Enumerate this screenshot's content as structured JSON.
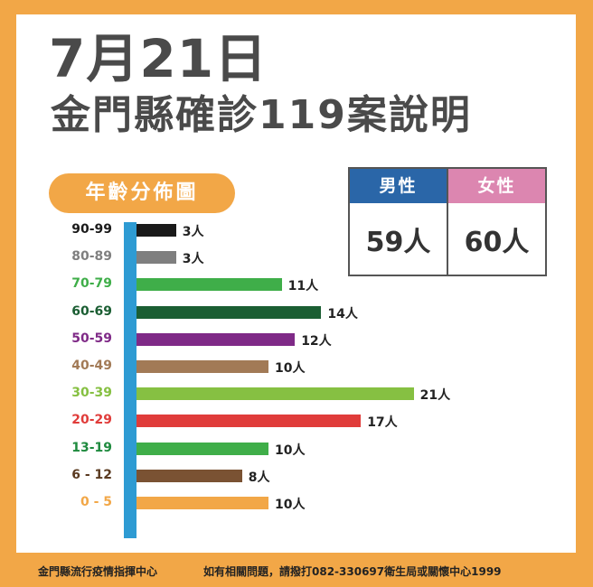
{
  "header": {
    "date": "7月21日",
    "title": "金門縣確診119案說明"
  },
  "section_label": "年齡分佈圖",
  "gender": {
    "male": {
      "label": "男性",
      "value": "59人",
      "color": "#2a66a8"
    },
    "female": {
      "label": "女性",
      "value": "60人",
      "color": "#dc86b0"
    }
  },
  "chart_data": {
    "type": "bar",
    "orientation": "horizontal",
    "title": "年齡分佈圖",
    "xlabel": "",
    "ylabel": "年齡",
    "unit": "人",
    "categories": [
      "90-99",
      "80-89",
      "70-79",
      "60-69",
      "50-59",
      "40-49",
      "30-39",
      "20-29",
      "13-19",
      "6 - 12",
      "0 - 5"
    ],
    "values": [
      3,
      3,
      11,
      14,
      12,
      10,
      21,
      17,
      10,
      8,
      10
    ],
    "value_labels": [
      "3人",
      "3人",
      "11人",
      "14人",
      "12人",
      "10人",
      "21人",
      "17人",
      "10人",
      "8人",
      "10人"
    ],
    "bar_colors": [
      "#1a1a1a",
      "#7f7f7f",
      "#3fae49",
      "#1b5e33",
      "#7f2a87",
      "#a27a56",
      "#86c042",
      "#e03c3a",
      "#3fae49",
      "#7a5233",
      "#f2a747"
    ],
    "label_colors": [
      "#1a1a1a",
      "#7f7f7f",
      "#3fae49",
      "#1b5e33",
      "#7f2a87",
      "#a27a56",
      "#86c042",
      "#e03c3a",
      "#1e8a3e",
      "#5a3a20",
      "#f2a747"
    ],
    "axis_color": "#2e9bd3",
    "grid": false,
    "legend": false
  },
  "footer": {
    "left": "金門縣流行疫情指揮中心",
    "right": "如有相關問題，請撥打082-330697衛生局或關懷中心1999"
  },
  "colors": {
    "frame": "#f2a747",
    "title_text": "#4a4a4a"
  }
}
